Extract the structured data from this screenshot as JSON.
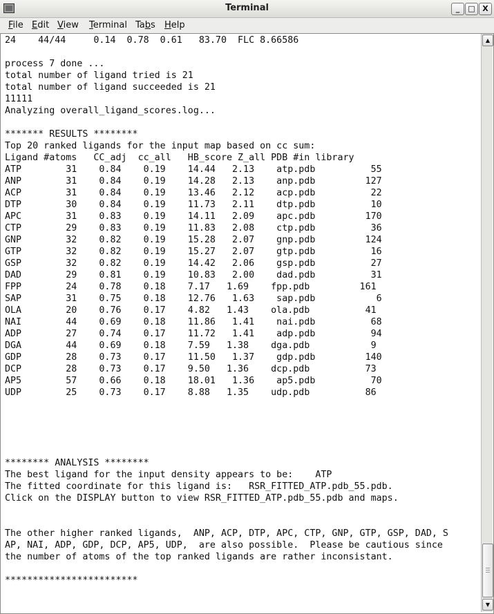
{
  "window": {
    "title": "Terminal",
    "controls": [
      "minimize-icon",
      "maximize-icon",
      "close-icon"
    ]
  },
  "menu": [
    {
      "pre": "",
      "key": "F",
      "post": "ile"
    },
    {
      "pre": "",
      "key": "E",
      "post": "dit"
    },
    {
      "pre": "",
      "key": "V",
      "post": "iew"
    },
    {
      "pre": "",
      "key": "T",
      "post": "erminal"
    },
    {
      "pre": "Ta",
      "key": "b",
      "post": "s"
    },
    {
      "pre": "",
      "key": "H",
      "post": "elp"
    }
  ],
  "terminal": {
    "lines": [
      "24    44/44     0.14  0.78  0.61   83.70  FLC 8.66586",
      "",
      "process 7 done ...",
      "total number of ligand tried is 21",
      "total number of ligand succeeded is 21",
      "11111",
      "Analyzing overall_ligand_scores.log...",
      "",
      "******* RESULTS ********",
      "Top 20 ranked ligands for the input map based on cc sum:",
      "Ligand #atoms   CC_adj  cc_all   HB_score Z_all PDB #in library",
      "ATP        31    0.84    0.19    14.44   2.13    atp.pdb          55",
      "ANP        31    0.84    0.19    14.28   2.13    anp.pdb         127",
      "ACP        31    0.84    0.19    13.46   2.12    acp.pdb          22",
      "DTP        30    0.84    0.19    11.73   2.11    dtp.pdb          10",
      "APC        31    0.83    0.19    14.11   2.09    apc.pdb         170",
      "CTP        29    0.83    0.19    11.83   2.08    ctp.pdb          36",
      "GNP        32    0.82    0.19    15.28   2.07    gnp.pdb         124",
      "GTP        32    0.82    0.19    15.27   2.07    gtp.pdb          16",
      "GSP        32    0.82    0.19    14.42   2.06    gsp.pdb          27",
      "DAD        29    0.81    0.19    10.83   2.00    dad.pdb          31",
      "FPP        24    0.78    0.18    7.17   1.69    fpp.pdb         161",
      "SAP        31    0.75    0.18    12.76   1.63    sap.pdb           6",
      "OLA        20    0.76    0.17    4.82   1.43    ola.pdb          41",
      "NAI        44    0.69    0.18    11.86   1.41    nai.pdb          68",
      "ADP        27    0.74    0.17    11.72   1.41    adp.pdb          94",
      "DGA        44    0.69    0.18    7.59   1.38    dga.pdb           9",
      "GDP        28    0.73    0.17    11.50   1.37    gdp.pdb         140",
      "DCP        28    0.73    0.17    9.50   1.36    dcp.pdb          73",
      "AP5        57    0.66    0.18    18.01   1.36    ap5.pdb          70",
      "UDP        25    0.73    0.17    8.88   1.35    udp.pdb          86",
      "",
      "",
      "",
      "",
      "",
      "******** ANALYSIS ********",
      "The best ligand for the input density appears to be:    ATP",
      "The fitted coordinate for this ligand is:   RSR_FITTED_ATP.pdb_55.pdb.",
      "Click on the DISPLAY button to view RSR_FITTED_ATP.pdb_55.pdb and maps.",
      "",
      "",
      "The other higher ranked ligands,  ANP, ACP, DTP, APC, CTP, GNP, GTP, GSP, DAD, S",
      "AP, NAI, ADP, GDP, DCP, AP5, UDP,  are also possible.  Please be cautious since",
      "the number of atoms of the top ranked ligands are rather inconsistant.",
      "",
      "************************"
    ]
  },
  "scrollbar": {
    "position_fraction": 1.0
  }
}
